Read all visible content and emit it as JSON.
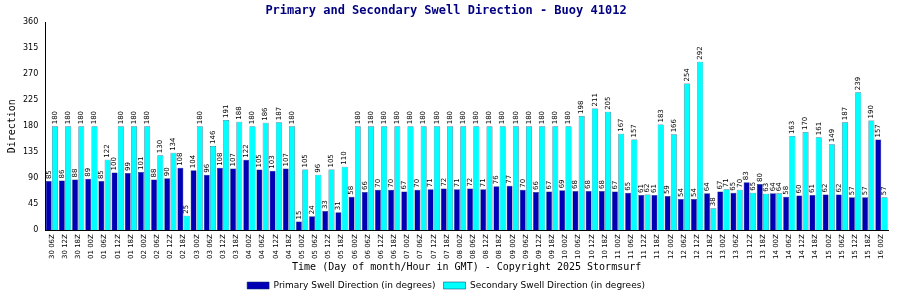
{
  "chart_data": {
    "type": "bar",
    "title": "Primary and Secondary Swell Direction - Buoy 41012",
    "x_label": "Time (Day of month/Hour in GMT) - Copyright 2025 Stormsurf",
    "y_label": "Direction",
    "categories": [
      "30 06Z",
      "30 12Z",
      "30 18Z",
      "01 00Z",
      "01 06Z",
      "01 12Z",
      "01 18Z",
      "02 00Z",
      "02 06Z",
      "02 12Z",
      "02 18Z",
      "03 00Z",
      "03 06Z",
      "03 12Z",
      "03 18Z",
      "04 00Z",
      "04 06Z",
      "04 12Z",
      "04 18Z",
      "05 00Z",
      "05 06Z",
      "05 12Z",
      "05 18Z",
      "06 00Z",
      "06 06Z",
      "06 12Z",
      "06 18Z",
      "07 00Z",
      "07 06Z",
      "07 12Z",
      "07 18Z",
      "08 00Z",
      "08 06Z",
      "08 12Z",
      "08 18Z",
      "09 00Z",
      "09 06Z",
      "09 12Z",
      "09 18Z",
      "10 00Z",
      "10 06Z",
      "10 12Z",
      "10 18Z",
      "11 00Z",
      "11 06Z",
      "11 12Z",
      "11 18Z",
      "12 00Z",
      "12 06Z",
      "12 12Z",
      "12 18Z",
      "13 00Z",
      "13 06Z",
      "13 12Z",
      "13 18Z",
      "14 00Z",
      "14 06Z",
      "14 12Z",
      "14 18Z",
      "15 00Z",
      "15 06Z",
      "15 12Z",
      "15 18Z",
      "16 00Z"
    ],
    "series": [
      {
        "name": "Primary Swell Direction (in degrees)",
        "color": "#0000b4",
        "values": [
          85,
          86,
          88,
          89,
          85,
          100,
          99,
          101,
          88,
          90,
          108,
          104,
          96,
          108,
          107,
          122,
          105,
          103,
          107,
          15,
          24,
          33,
          31,
          58,
          66,
          70,
          70,
          67,
          70,
          71,
          72,
          71,
          72,
          71,
          76,
          77,
          70,
          66,
          67,
          69,
          68,
          68,
          68,
          67,
          65,
          61,
          61,
          59,
          54,
          54,
          64,
          67,
          65,
          83,
          80,
          64,
          58,
          60,
          61,
          62,
          62,
          57,
          57,
          157
        ]
      },
      {
        "name": "Secondary Swell Direction (in degrees)",
        "color": "#00ffff",
        "values": [
          180,
          180,
          180,
          180,
          122,
          180,
          180,
          180,
          130,
          134,
          25,
          180,
          146,
          191,
          188,
          180,
          186,
          187,
          180,
          105,
          96,
          105,
          110,
          180,
          180,
          180,
          180,
          180,
          180,
          180,
          180,
          180,
          180,
          180,
          180,
          180,
          180,
          180,
          180,
          180,
          198,
          211,
          205,
          167,
          157,
          62,
          183,
          166,
          254,
          292,
          38,
          71,
          70,
          65,
          63,
          64,
          163,
          170,
          161,
          149,
          187,
          239,
          190,
          57
        ]
      }
    ],
    "ylim": [
      0,
      360
    ],
    "yticks": [
      0,
      45,
      90,
      135,
      180,
      225,
      270,
      315,
      360
    ],
    "grid": false,
    "legend": "bottom",
    "data_labels": true
  }
}
